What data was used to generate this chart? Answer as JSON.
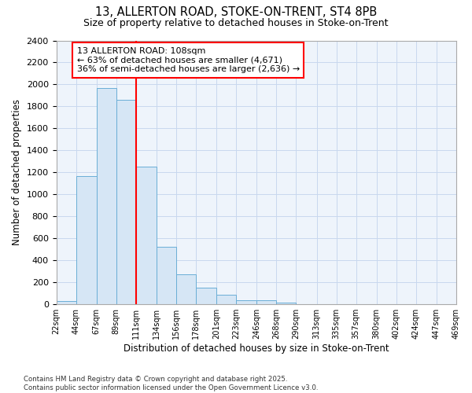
{
  "title_line1": "13, ALLERTON ROAD, STOKE-ON-TRENT, ST4 8PB",
  "title_line2": "Size of property relative to detached houses in Stoke-on-Trent",
  "xlabel": "Distribution of detached houses by size in Stoke-on-Trent",
  "ylabel": "Number of detached properties",
  "bin_labels": [
    "22sqm",
    "44sqm",
    "67sqm",
    "89sqm",
    "111sqm",
    "134sqm",
    "156sqm",
    "178sqm",
    "201sqm",
    "223sqm",
    "246sqm",
    "268sqm",
    "290sqm",
    "313sqm",
    "335sqm",
    "357sqm",
    "380sqm",
    "402sqm",
    "424sqm",
    "447sqm",
    "469sqm"
  ],
  "bin_edges": [
    22,
    44,
    67,
    89,
    111,
    134,
    156,
    178,
    201,
    223,
    246,
    268,
    290,
    313,
    335,
    357,
    380,
    402,
    424,
    447,
    469
  ],
  "bar_heights": [
    30,
    1170,
    1970,
    1860,
    1250,
    520,
    275,
    150,
    90,
    40,
    35,
    15,
    5,
    3,
    2,
    2,
    1,
    1,
    1,
    1
  ],
  "bar_color": "#d6e6f5",
  "bar_edge_color": "#6aaed6",
  "red_line_x": 111,
  "annotation_text": "13 ALLERTON ROAD: 108sqm\n← 63% of detached houses are smaller (4,671)\n36% of semi-detached houses are larger (2,636) →",
  "annotation_box_color": "white",
  "annotation_box_edge": "red",
  "ylim": [
    0,
    2400
  ],
  "grid_color": "#c8d8ee",
  "plot_bg_color": "#eef4fb",
  "fig_bg_color": "#ffffff",
  "footnote": "Contains HM Land Registry data © Crown copyright and database right 2025.\nContains public sector information licensed under the Open Government Licence v3.0."
}
